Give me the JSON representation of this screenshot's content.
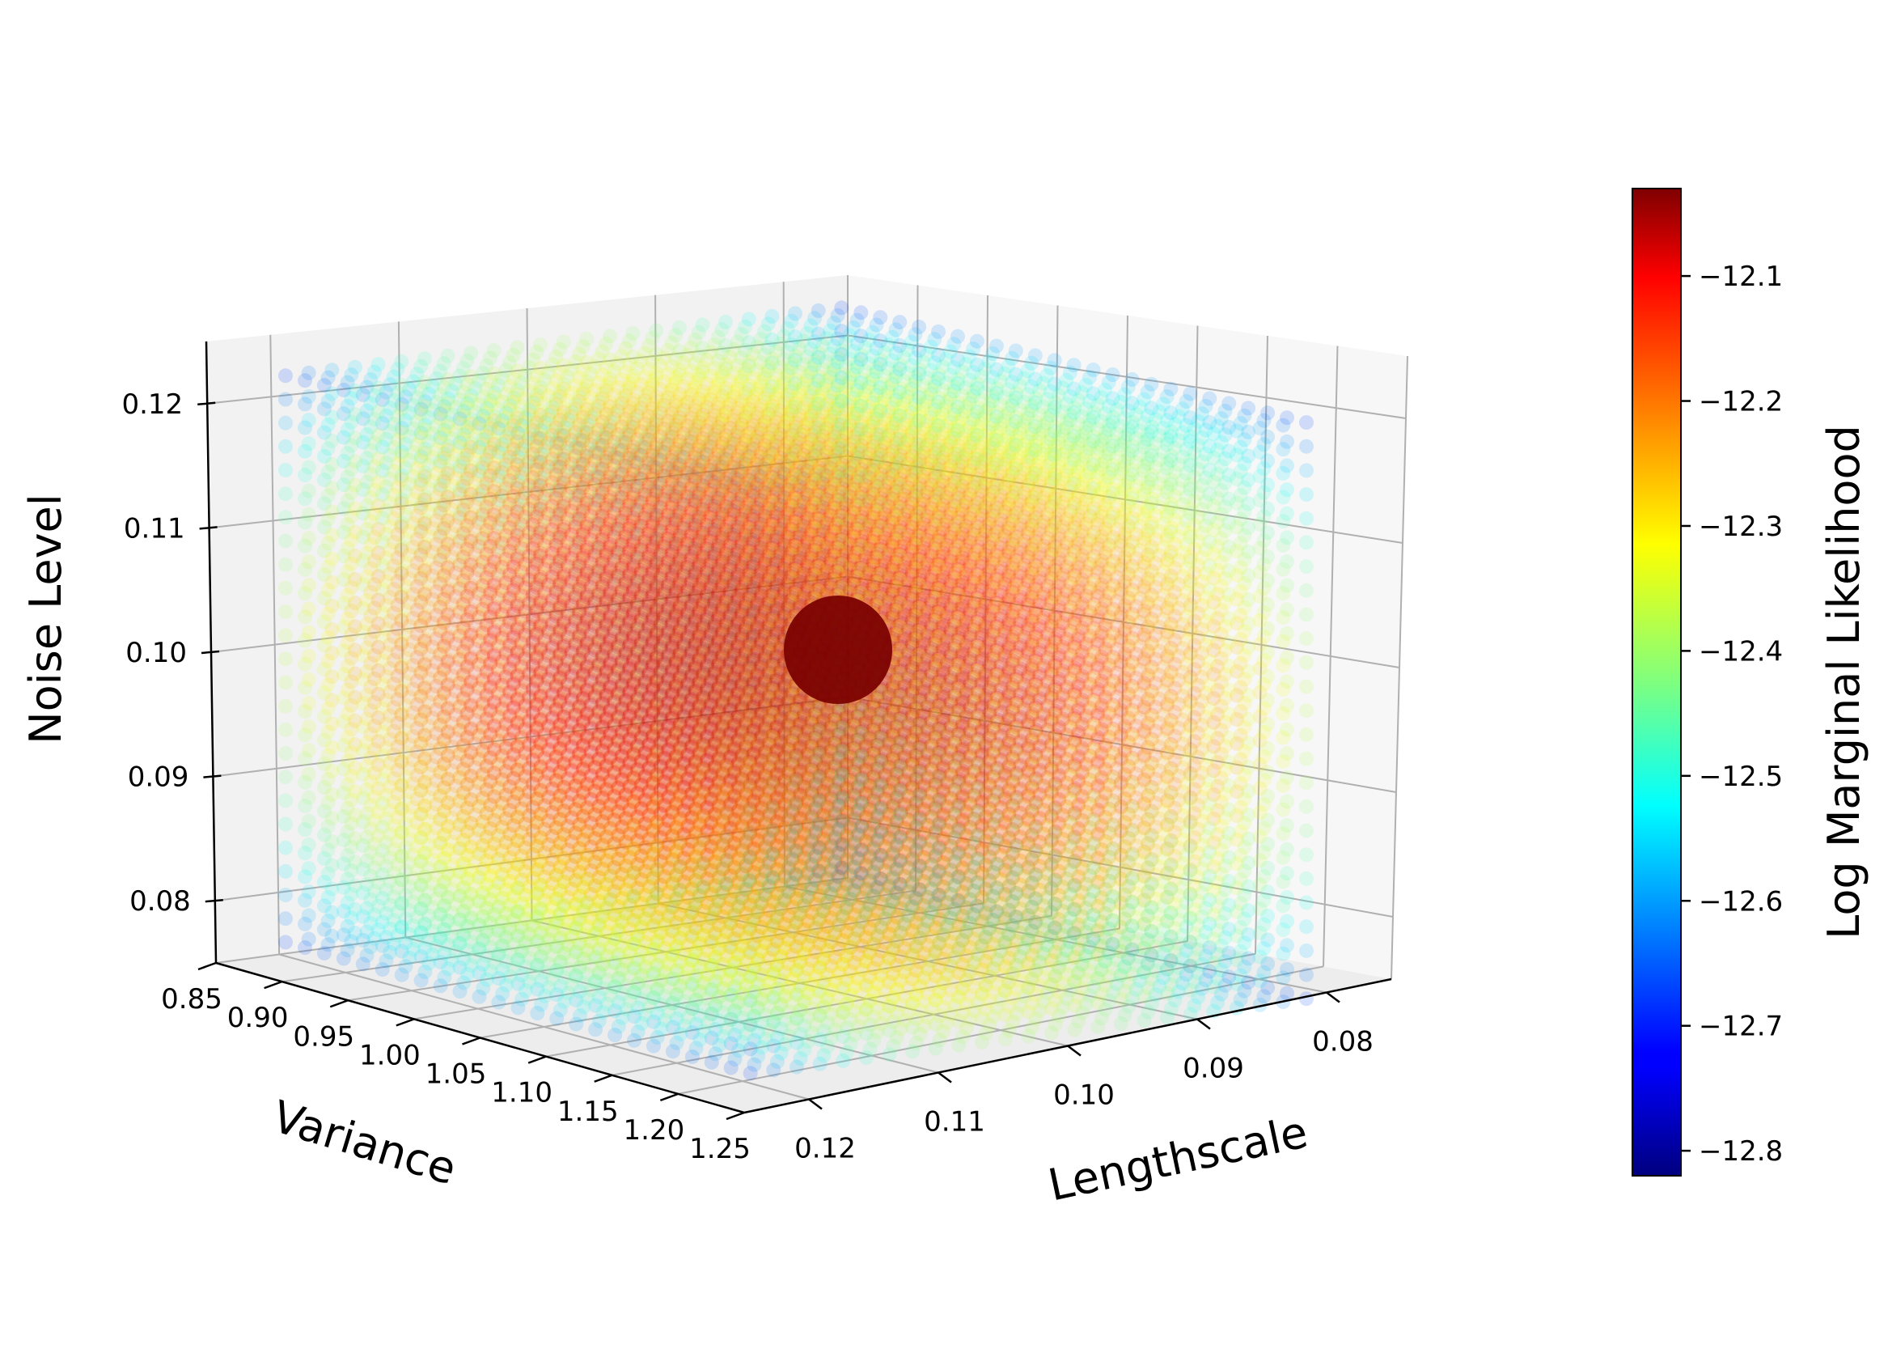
{
  "chart_data": {
    "type": "scatter",
    "projection": "3d",
    "title": "",
    "axes": {
      "x": {
        "label": "Variance",
        "ticks": [
          "0.85",
          "0.90",
          "0.95",
          "1.00",
          "1.05",
          "1.10",
          "1.15",
          "1.20",
          "1.25"
        ],
        "range": [
          0.85,
          1.25
        ]
      },
      "y": {
        "label": "Lengthscale",
        "ticks": [
          "0.08",
          "0.09",
          "0.10",
          "0.11",
          "0.12"
        ],
        "range": [
          0.075,
          0.125
        ]
      },
      "z": {
        "label": "Noise Level",
        "ticks": [
          "0.08",
          "0.09",
          "0.10",
          "0.11",
          "0.12"
        ],
        "range": [
          0.075,
          0.125
        ]
      }
    },
    "grid": true,
    "colormap": "jet",
    "point_alpha": 0.15,
    "grid_points_per_axis": 25,
    "optimum": {
      "variance": 1.05,
      "lengthscale": 0.1,
      "noise": 0.1,
      "log_marginal_likelihood": -12.03
    },
    "colorbar": {
      "label": "Log Marginal Likelihood",
      "ticks": [
        "−12.1",
        "−12.2",
        "−12.3",
        "−12.4",
        "−12.5",
        "−12.6",
        "−12.7",
        "−12.8"
      ],
      "range": [
        -12.82,
        -12.03
      ]
    }
  }
}
